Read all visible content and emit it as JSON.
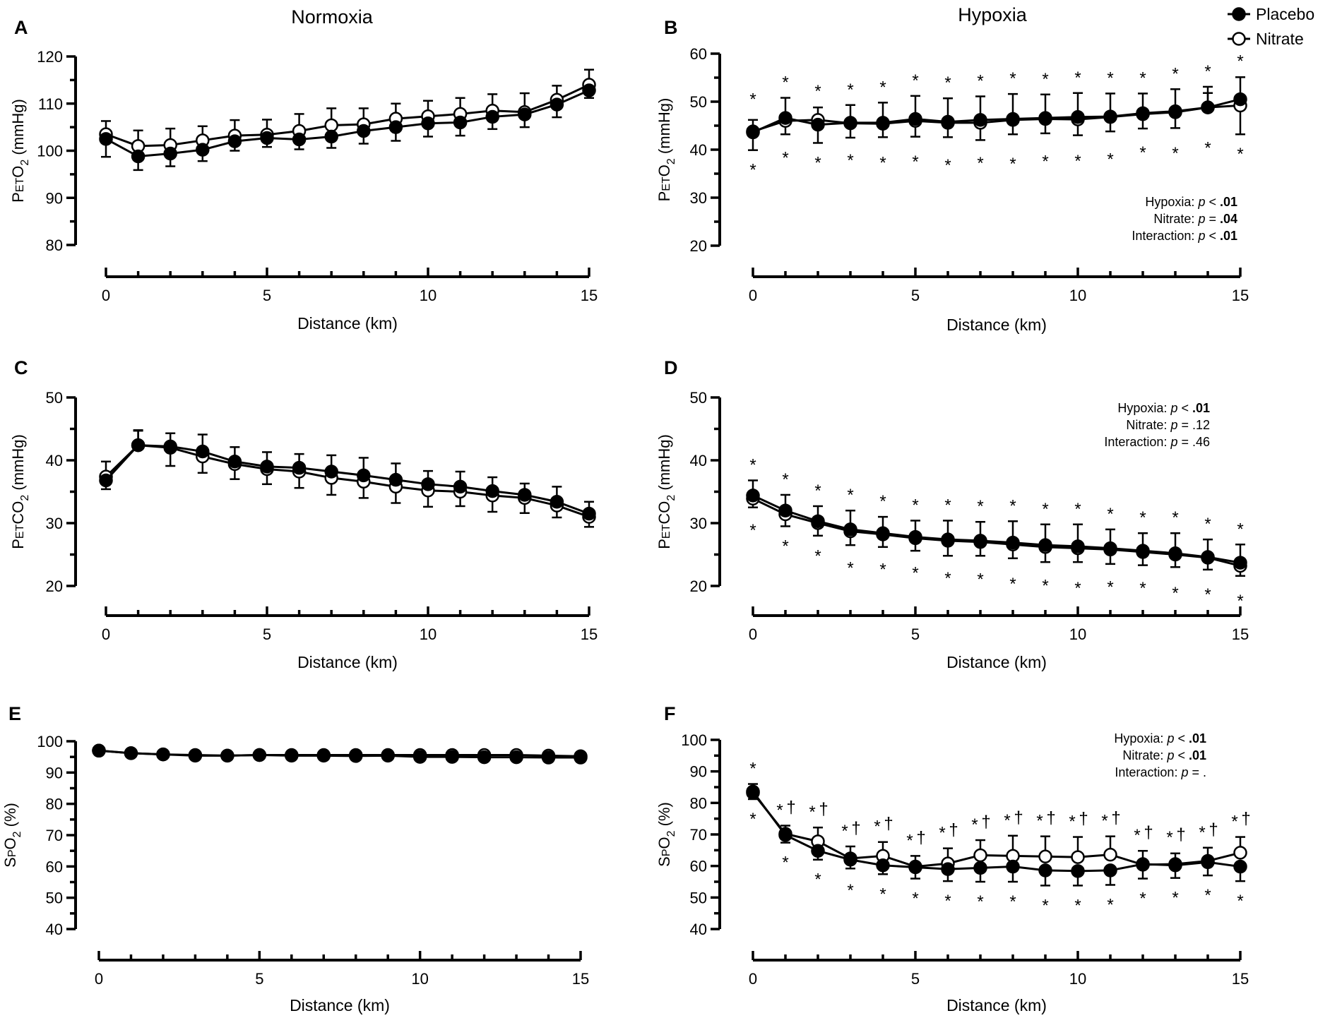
{
  "columns": {
    "left": "Normoxia",
    "right": "Hypoxia"
  },
  "legend": {
    "placement": "top-right",
    "items": [
      {
        "label": "Placebo",
        "marker": "filled-circle"
      },
      {
        "label": "Nitrate",
        "marker": "open-circle"
      }
    ]
  },
  "colors": {
    "placebo_fill": "#000000",
    "nitrate_fill": "#ffffff",
    "line": "#000000"
  },
  "chart_data": [
    {
      "id": "A",
      "panel_label": "A",
      "type": "line",
      "condition": "Normoxia",
      "ylabel": {
        "main": "P",
        "sub1": "ET",
        "mid": "O",
        "sub2": "2",
        "tail": " (mmHg)"
      },
      "xlabel": "Distance (km)",
      "xlim": [
        0,
        15
      ],
      "xticks": [
        0,
        5,
        10,
        15
      ],
      "ylim": [
        80,
        120
      ],
      "yticks": [
        80,
        90,
        100,
        110,
        120
      ],
      "yminor": 5,
      "x": [
        0,
        1,
        2,
        3,
        4,
        5,
        6,
        7,
        8,
        9,
        10,
        11,
        12,
        13,
        14,
        15
      ],
      "series": [
        {
          "name": "Placebo",
          "values": [
            102.5,
            98.8,
            99.4,
            100.2,
            102.0,
            102.7,
            102.4,
            103.0,
            104.2,
            105.0,
            105.8,
            106.0,
            107.2,
            107.7,
            109.8,
            112.8
          ],
          "err": [
            3.8,
            2.9,
            2.7,
            2.4,
            2.0,
            1.9,
            2.1,
            2.4,
            2.7,
            2.9,
            2.8,
            2.8,
            2.6,
            2.7,
            2.7,
            1.6
          ]
        },
        {
          "name": "Nitrate",
          "values": [
            103.5,
            101.0,
            101.2,
            102.2,
            103.2,
            103.4,
            104.2,
            105.4,
            105.6,
            106.8,
            107.3,
            107.8,
            108.5,
            108.2,
            110.8,
            114.0
          ],
          "err": [
            2.8,
            3.3,
            3.5,
            3.0,
            3.3,
            3.2,
            3.6,
            3.6,
            3.4,
            3.2,
            3.3,
            3.4,
            3.5,
            4.0,
            3.0,
            3.2
          ]
        }
      ],
      "stars_above": [],
      "stars_below": [],
      "daggers": [],
      "stats": []
    },
    {
      "id": "B",
      "panel_label": "B",
      "type": "line",
      "condition": "Hypoxia",
      "ylabel": {
        "main": "P",
        "sub1": "ET",
        "mid": "O",
        "sub2": "2",
        "tail": " (mmHg)"
      },
      "xlabel": "Distance (km)",
      "xlim": [
        0,
        15
      ],
      "xticks": [
        0,
        5,
        10,
        15
      ],
      "ylim": [
        20,
        60
      ],
      "yticks": [
        20,
        30,
        40,
        50,
        60
      ],
      "yminor": 5,
      "x": [
        0,
        1,
        2,
        3,
        4,
        5,
        6,
        7,
        8,
        9,
        10,
        11,
        12,
        13,
        14,
        15
      ],
      "series": [
        {
          "name": "Placebo",
          "values": [
            43.6,
            46.6,
            45.2,
            45.6,
            45.6,
            46.4,
            45.8,
            46.2,
            46.4,
            46.6,
            46.8,
            46.9,
            47.6,
            48.0,
            48.8,
            50.5
          ],
          "err": [
            3.7,
            4.2,
            3.8,
            3.7,
            4.2,
            4.8,
            4.9,
            4.9,
            5.2,
            4.9,
            5.0,
            4.8,
            4.1,
            4.6,
            4.3,
            4.6
          ]
        },
        {
          "name": "Nitrate",
          "values": [
            43.8,
            46.0,
            46.2,
            45.5,
            45.4,
            46.0,
            45.6,
            45.6,
            46.2,
            46.4,
            46.3,
            46.8,
            47.4,
            47.8,
            48.8,
            49.2
          ],
          "err": [
            2.4,
            2.8,
            2.6,
            3.0,
            2.8,
            3.3,
            3.0,
            3.6,
            3.0,
            3.0,
            3.3,
            3.0,
            3.0,
            3.3,
            3.0,
            6.0
          ]
        }
      ],
      "stars_above": [
        0,
        1,
        2,
        3,
        4,
        5,
        6,
        7,
        8,
        9,
        10,
        11,
        12,
        13,
        14,
        15
      ],
      "stars_below": [
        0,
        1,
        2,
        3,
        4,
        5,
        6,
        7,
        8,
        9,
        10,
        11,
        12,
        13,
        14,
        15
      ],
      "daggers": [],
      "stats_position": "bottom-right",
      "stats": [
        {
          "label": "Hypoxia: ",
          "p": "p",
          "op": " < ",
          "value": ".01",
          "bold": true
        },
        {
          "label": "Nitrate:  ",
          "p": "p",
          "op": " = ",
          "value": ".04",
          "bold": true
        },
        {
          "label": "Interaction: ",
          "p": "p",
          "op": " < ",
          "value": ".01",
          "bold": true
        }
      ]
    },
    {
      "id": "C",
      "panel_label": "C",
      "type": "line",
      "condition": "Normoxia",
      "ylabel": {
        "main": "P",
        "sub1": "ET",
        "mid": "CO",
        "sub2": "2",
        "tail": " (mmHg)"
      },
      "xlabel": "Distance (km)",
      "xlim": [
        0,
        15
      ],
      "xticks": [
        0,
        5,
        10,
        15
      ],
      "ylim": [
        20,
        50
      ],
      "yticks": [
        20,
        30,
        40,
        50
      ],
      "yminor": 5,
      "x": [
        0,
        1,
        2,
        3,
        4,
        5,
        6,
        7,
        8,
        9,
        10,
        11,
        12,
        13,
        14,
        15
      ],
      "series": [
        {
          "name": "Placebo",
          "values": [
            36.8,
            42.4,
            42.2,
            41.4,
            39.8,
            39.0,
            38.8,
            38.2,
            37.6,
            36.9,
            36.2,
            35.8,
            35.1,
            34.5,
            33.4,
            31.5
          ],
          "err": [
            1.4,
            2.4,
            2.1,
            2.7,
            2.3,
            2.3,
            2.2,
            2.6,
            2.8,
            2.6,
            2.1,
            2.4,
            2.2,
            1.8,
            2.4,
            1.9
          ]
        },
        {
          "name": "Nitrate",
          "values": [
            37.4,
            42.4,
            42.0,
            40.6,
            39.4,
            38.6,
            38.2,
            37.2,
            36.6,
            35.8,
            35.2,
            35.0,
            34.4,
            34.0,
            32.8,
            31.0
          ],
          "err": [
            2.4,
            2.3,
            2.9,
            2.6,
            2.4,
            2.4,
            2.6,
            2.7,
            2.6,
            2.6,
            2.6,
            2.3,
            2.6,
            2.4,
            1.9,
            1.6
          ]
        }
      ],
      "stars_above": [],
      "stars_below": [],
      "daggers": [],
      "stats": []
    },
    {
      "id": "D",
      "panel_label": "D",
      "type": "line",
      "condition": "Hypoxia",
      "ylabel": {
        "main": "P",
        "sub1": "ET",
        "mid": "CO",
        "sub2": "2",
        "tail": " (mmHg)"
      },
      "xlabel": "Distance (km)",
      "xlim": [
        0,
        15
      ],
      "xticks": [
        0,
        5,
        10,
        15
      ],
      "ylim": [
        20,
        50
      ],
      "yticks": [
        20,
        30,
        40,
        50
      ],
      "yminor": 5,
      "x": [
        0,
        1,
        2,
        3,
        4,
        5,
        6,
        7,
        8,
        9,
        10,
        11,
        12,
        13,
        14,
        15
      ],
      "series": [
        {
          "name": "Placebo",
          "values": [
            34.4,
            32.0,
            30.3,
            29.0,
            28.4,
            27.8,
            27.4,
            27.2,
            26.9,
            26.5,
            26.3,
            26.0,
            25.6,
            25.2,
            24.6,
            23.7
          ],
          "err": [
            2.4,
            2.5,
            2.4,
            3.0,
            2.6,
            2.6,
            3.0,
            3.0,
            3.4,
            3.3,
            3.5,
            3.0,
            2.8,
            3.2,
            2.8,
            2.9
          ]
        },
        {
          "name": "Nitrate",
          "values": [
            33.9,
            31.4,
            30.0,
            28.7,
            28.2,
            27.6,
            27.2,
            27.0,
            26.6,
            26.2,
            26.0,
            25.8,
            25.4,
            25.0,
            24.5,
            23.2
          ],
          "err": [
            1.4,
            1.9,
            2.0,
            2.2,
            2.0,
            2.0,
            2.4,
            2.2,
            2.2,
            2.4,
            2.2,
            2.3,
            2.1,
            2.0,
            1.9,
            1.6
          ]
        }
      ],
      "stars_above": [
        0,
        1,
        2,
        3,
        4,
        5,
        6,
        7,
        8,
        9,
        10,
        11,
        12,
        13,
        14,
        15
      ],
      "stars_below": [
        0,
        1,
        2,
        3,
        4,
        5,
        6,
        7,
        8,
        9,
        10,
        11,
        12,
        13,
        14,
        15
      ],
      "daggers": [],
      "stats_position": "top-right",
      "stats": [
        {
          "label": "Hypoxia: ",
          "p": "p",
          "op": " < ",
          "value": ".01",
          "bold": true
        },
        {
          "label": "Nitrate:  ",
          "p": "p",
          "op": " = ",
          "value": ".12",
          "bold": false
        },
        {
          "label": "Interaction: ",
          "p": "p",
          "op": " = ",
          "value": ".46",
          "bold": false
        }
      ]
    },
    {
      "id": "E",
      "panel_label": "E",
      "type": "line",
      "condition": "Normoxia",
      "ylabel": {
        "main": "S",
        "sub1": "P",
        "mid": "O",
        "sub2": "2",
        "tail": " (%)"
      },
      "xlabel": "Distance (km)",
      "xlim": [
        0,
        15
      ],
      "xticks": [
        0,
        5,
        10,
        15
      ],
      "ylim": [
        40,
        100
      ],
      "yticks": [
        40,
        50,
        60,
        70,
        80,
        90,
        100
      ],
      "yminor": 5,
      "x": [
        0,
        1,
        2,
        3,
        4,
        5,
        6,
        7,
        8,
        9,
        10,
        11,
        12,
        13,
        14,
        15
      ],
      "series": [
        {
          "name": "Placebo",
          "values": [
            97.0,
            96.2,
            95.8,
            95.4,
            95.4,
            95.6,
            95.4,
            95.4,
            95.3,
            95.4,
            95.0,
            95.0,
            94.9,
            94.9,
            94.8,
            94.8
          ],
          "err": [
            0.5,
            0.5,
            0.5,
            0.5,
            0.5,
            0.5,
            0.5,
            0.5,
            0.5,
            0.5,
            0.5,
            0.5,
            0.5,
            0.5,
            0.5,
            0.5
          ]
        },
        {
          "name": "Nitrate",
          "values": [
            97.0,
            96.2,
            95.8,
            95.6,
            95.4,
            95.6,
            95.6,
            95.6,
            95.6,
            95.6,
            95.6,
            95.6,
            95.6,
            95.6,
            95.4,
            95.2
          ],
          "err": [
            0.5,
            0.5,
            0.5,
            0.5,
            0.5,
            0.5,
            0.5,
            0.5,
            0.5,
            0.5,
            0.5,
            0.5,
            0.5,
            0.5,
            0.5,
            0.5
          ]
        }
      ],
      "stars_above": [],
      "stars_below": [],
      "daggers": [],
      "stats": []
    },
    {
      "id": "F",
      "panel_label": "F",
      "type": "line",
      "condition": "Hypoxia",
      "ylabel": {
        "main": "S",
        "sub1": "P",
        "mid": "O",
        "sub2": "2",
        "tail": " (%)"
      },
      "xlabel": "Distance (km)",
      "xlim": [
        0,
        15
      ],
      "xticks": [
        0,
        5,
        10,
        15
      ],
      "ylim": [
        40,
        100
      ],
      "yticks": [
        40,
        50,
        60,
        70,
        80,
        90,
        100
      ],
      "yminor": 5,
      "x": [
        0,
        1,
        2,
        3,
        4,
        5,
        6,
        7,
        8,
        9,
        10,
        11,
        12,
        13,
        14,
        15
      ],
      "series": [
        {
          "name": "Placebo",
          "values": [
            83.6,
            69.8,
            64.8,
            62.0,
            60.2,
            59.6,
            59.0,
            59.4,
            59.8,
            58.6,
            58.4,
            58.6,
            60.6,
            60.2,
            61.2,
            59.8
          ],
          "err": [
            2.4,
            2.4,
            2.8,
            2.8,
            2.8,
            3.6,
            3.8,
            4.4,
            4.8,
            4.8,
            4.6,
            4.6,
            4.2,
            4.0,
            4.2,
            4.6
          ]
        },
        {
          "name": "Nitrate",
          "values": [
            83.2,
            70.2,
            67.8,
            62.4,
            63.2,
            59.8,
            60.8,
            63.4,
            63.2,
            63.0,
            62.8,
            63.6,
            60.4,
            60.6,
            61.6,
            64.2
          ],
          "err": [
            2.0,
            2.6,
            4.4,
            3.8,
            4.4,
            3.4,
            4.8,
            4.8,
            6.4,
            6.4,
            6.4,
            5.8,
            4.4,
            3.4,
            4.2,
            5.0
          ]
        }
      ],
      "stars_above": [
        0,
        1,
        2,
        3,
        4,
        5,
        6,
        7,
        8,
        9,
        10,
        11,
        12,
        13,
        14,
        15
      ],
      "stars_below": [
        0,
        1,
        2,
        3,
        4,
        5,
        6,
        7,
        8,
        9,
        10,
        11,
        12,
        13,
        14,
        15
      ],
      "daggers": [
        1,
        2,
        3,
        4,
        5,
        6,
        7,
        8,
        9,
        10,
        11,
        12,
        13,
        14,
        15
      ],
      "stats_position": "top-right",
      "stats": [
        {
          "label": "Hypoxia: ",
          "p": "p",
          "op": " < ",
          "value": ".01",
          "bold": true
        },
        {
          "label": "Nitrate: ",
          "p": "p",
          "op": " < ",
          "value": ".01",
          "bold": true
        },
        {
          "label": "Interaction: ",
          "p": "p",
          "op": " = ",
          "value": ".",
          "bold": false
        }
      ]
    }
  ]
}
